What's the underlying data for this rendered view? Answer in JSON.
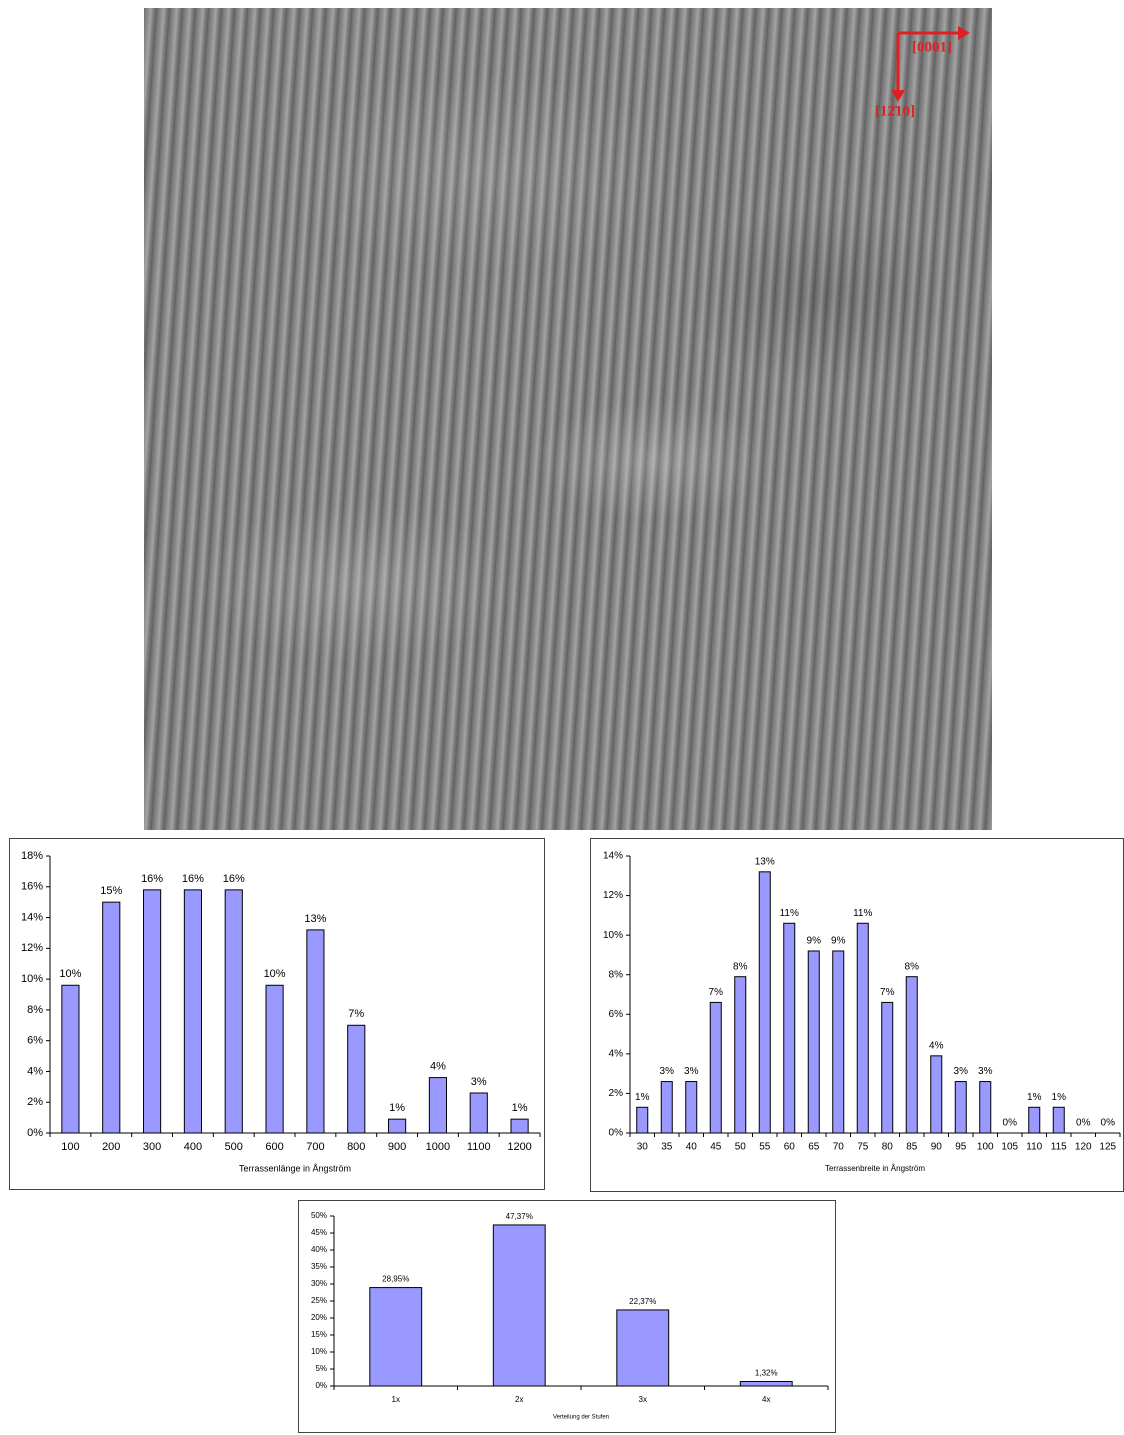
{
  "image": {
    "labels": [
      "[0001]",
      "[12̄10]"
    ]
  },
  "chart_data": [
    {
      "type": "bar",
      "x_label": "Terrassenlänge in Ångström",
      "color": "#9999ff",
      "categories": [
        "100",
        "200",
        "300",
        "400",
        "500",
        "600",
        "700",
        "800",
        "900",
        "1000",
        "1100",
        "1200"
      ],
      "values": [
        9.6,
        15,
        15.8,
        15.8,
        15.8,
        9.6,
        13.2,
        7,
        0.9,
        3.6,
        2.6,
        0.9
      ],
      "value_labels": [
        "10%",
        "15%",
        "16%",
        "16%",
        "16%",
        "10%",
        "13%",
        "7%",
        "1%",
        "4%",
        "3%",
        "1%"
      ],
      "ylim": [
        0,
        18
      ],
      "yticks": [
        {
          "value": 0,
          "label": "0%"
        },
        {
          "value": 2,
          "label": "2%"
        },
        {
          "value": 4,
          "label": "4%"
        },
        {
          "value": 6,
          "label": "6%"
        },
        {
          "value": 8,
          "label": "8%"
        },
        {
          "value": 10,
          "label": "10%"
        },
        {
          "value": 12,
          "label": "12%"
        },
        {
          "value": 14,
          "label": "14%"
        },
        {
          "value": 16,
          "label": "16%"
        },
        {
          "value": 18,
          "label": "18%"
        }
      ]
    },
    {
      "type": "bar",
      "x_label": "Terrassenbreite in Ångström",
      "color": "#9999ff",
      "categories": [
        "30",
        "35",
        "40",
        "45",
        "50",
        "55",
        "60",
        "65",
        "70",
        "75",
        "80",
        "85",
        "90",
        "95",
        "100",
        "105",
        "110",
        "115",
        "120",
        "125"
      ],
      "values": [
        1.3,
        2.6,
        2.6,
        6.6,
        7.9,
        13.2,
        10.6,
        9.2,
        9.2,
        10.6,
        6.6,
        7.9,
        3.9,
        2.6,
        2.6,
        0,
        1.3,
        1.3,
        0,
        0
      ],
      "value_labels": [
        "1%",
        "3%",
        "3%",
        "7%",
        "8%",
        "13%",
        "11%",
        "9%",
        "9%",
        "11%",
        "7%",
        "8%",
        "4%",
        "3%",
        "3%",
        "0%",
        "1%",
        "1%",
        "0%",
        "0%"
      ],
      "ylim": [
        0,
        14
      ],
      "yticks": [
        {
          "value": 0,
          "label": "0%"
        },
        {
          "value": 2,
          "label": "2%"
        },
        {
          "value": 4,
          "label": "4%"
        },
        {
          "value": 6,
          "label": "6%"
        },
        {
          "value": 8,
          "label": "8%"
        },
        {
          "value": 10,
          "label": "10%"
        },
        {
          "value": 12,
          "label": "12%"
        },
        {
          "value": 14,
          "label": "14%"
        }
      ]
    },
    {
      "type": "bar",
      "x_label": "Verteilung der Stufen",
      "color": "#9999ff",
      "categories": [
        "1x",
        "2x",
        "3x",
        "4x"
      ],
      "values": [
        28.95,
        47.37,
        22.37,
        1.32
      ],
      "value_labels": [
        "28,95%",
        "47,37%",
        "22,37%",
        "1,32%"
      ],
      "ylim": [
        0,
        50
      ],
      "yticks": [
        {
          "value": 0,
          "label": "0%"
        },
        {
          "value": 5,
          "label": "5%"
        },
        {
          "value": 10,
          "label": "10%"
        },
        {
          "value": 15,
          "label": "15%"
        },
        {
          "value": 20,
          "label": "20%"
        },
        {
          "value": 25,
          "label": "25%"
        },
        {
          "value": 30,
          "label": "30%"
        },
        {
          "value": 35,
          "label": "35%"
        },
        {
          "value": 40,
          "label": "40%"
        },
        {
          "value": 45,
          "label": "45%"
        },
        {
          "value": 50,
          "label": "50%"
        }
      ]
    }
  ]
}
